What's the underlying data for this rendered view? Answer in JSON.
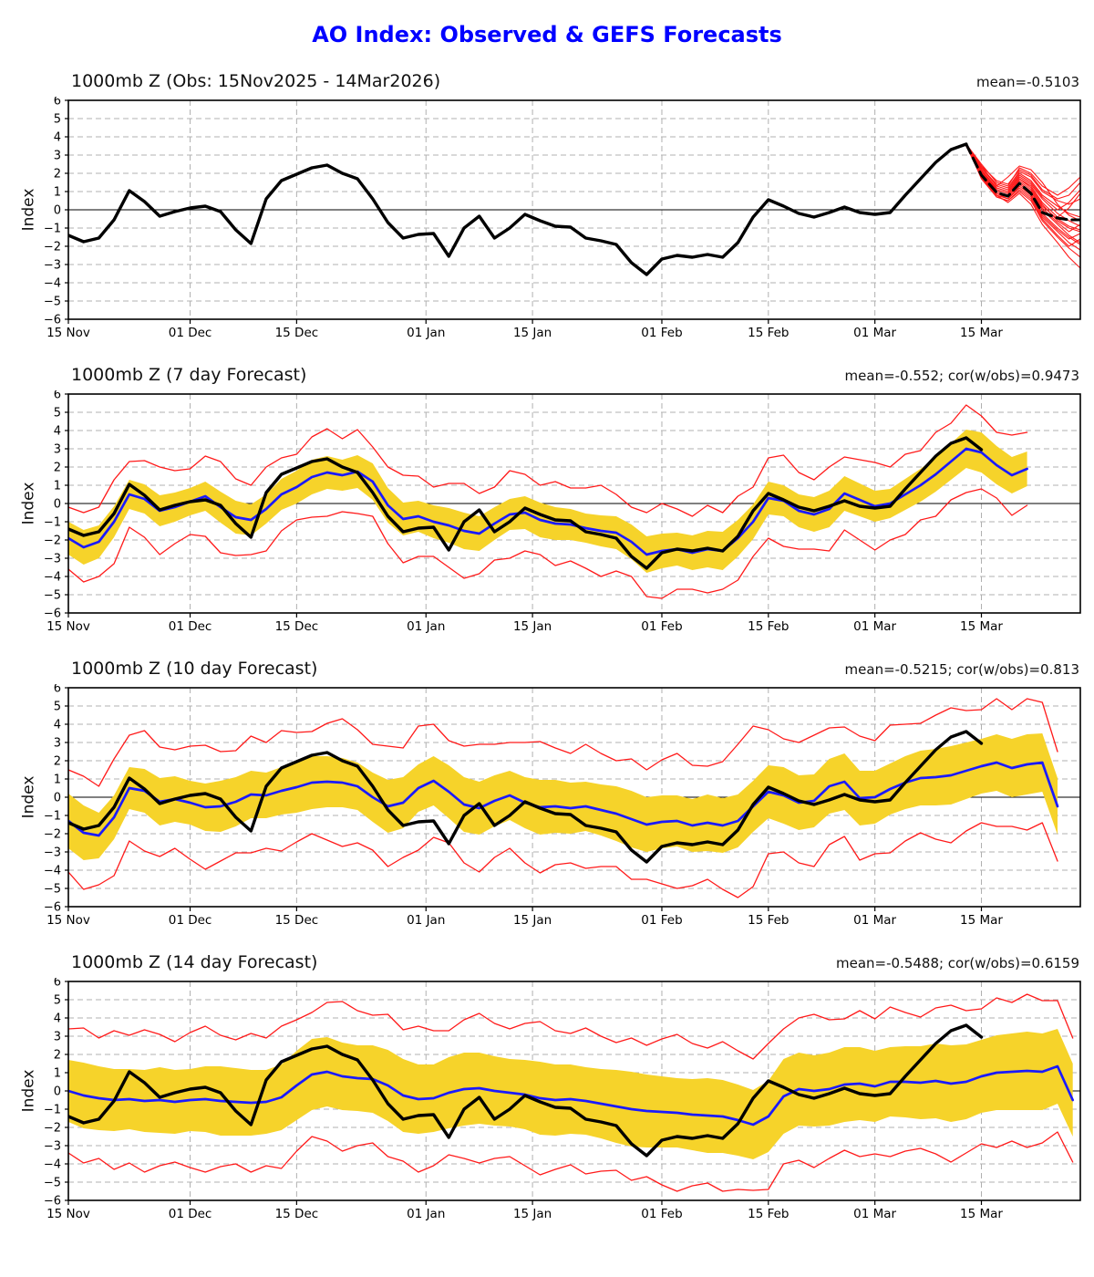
{
  "page_title": "AO Index: Observed & GEFS Forecasts",
  "colors": {
    "title": "#0000ff",
    "observed": "#000000",
    "forecast_mean": "#1a1aff",
    "ensemble_member": "#ff1a1a",
    "envelope": "#ff1a1a",
    "band": "#f6d32a",
    "grid": "#b0b0b0",
    "zero_line": "#000000",
    "frame": "#000000"
  },
  "axes": {
    "ylabel": "Index",
    "ymin": -6,
    "ymax": 6,
    "xmin_day": 0,
    "xmax_day": 133,
    "yticks": [
      {
        "value": 6,
        "label": "6"
      },
      {
        "value": 5,
        "label": "5"
      },
      {
        "value": 4,
        "label": "4"
      },
      {
        "value": 3,
        "label": "3"
      },
      {
        "value": 2,
        "label": "2"
      },
      {
        "value": 1,
        "label": "1"
      },
      {
        "value": 0,
        "label": "0"
      },
      {
        "value": -1,
        "label": "−1"
      },
      {
        "value": -2,
        "label": "−2"
      },
      {
        "value": -3,
        "label": "−3"
      },
      {
        "value": -4,
        "label": "−4"
      },
      {
        "value": -5,
        "label": "−5"
      },
      {
        "value": -6,
        "label": "−6"
      }
    ],
    "xticks": [
      {
        "day": 0,
        "label": "15 Nov"
      },
      {
        "day": 16,
        "label": "01 Dec"
      },
      {
        "day": 30,
        "label": "15 Dec"
      },
      {
        "day": 47,
        "label": "01 Jan"
      },
      {
        "day": 61,
        "label": "15 Jan"
      },
      {
        "day": 78,
        "label": "01 Feb"
      },
      {
        "day": 92,
        "label": "15 Feb"
      },
      {
        "day": 106,
        "label": "01 Mar"
      },
      {
        "day": 120,
        "label": "15 Mar"
      }
    ]
  },
  "chart_data": [
    {
      "type": "line",
      "title": "1000mb Z (Obs: 15Nov2025 - 14Mar2026)",
      "stats": "mean=-0.5103",
      "observed": {
        "x0": 0,
        "dx": 2,
        "values": [
          -1.4,
          -1.75,
          -1.55,
          -0.55,
          1.05,
          0.45,
          -0.35,
          -0.1,
          0.1,
          0.2,
          -0.1,
          -1.1,
          -1.85,
          0.6,
          1.6,
          1.95,
          2.3,
          2.45,
          2.0,
          1.7,
          0.6,
          -0.7,
          -1.55,
          -1.35,
          -1.3,
          -2.55,
          -1.0,
          -0.35,
          -1.55,
          -1.0,
          -0.25,
          -0.6,
          -0.9,
          -0.95,
          -1.55,
          -1.7,
          -1.9,
          -2.9,
          -3.55,
          -2.7,
          -2.5,
          -2.6,
          -2.45,
          -2.6,
          -1.8,
          -0.4,
          0.55,
          0.2,
          -0.2,
          -0.4,
          -0.15,
          0.15,
          -0.15,
          -0.25,
          -0.15,
          0.8,
          1.7,
          2.6,
          3.3,
          3.6
        ]
      },
      "forecast_mean_dashed": {
        "x": [
          118,
          120,
          122,
          123.5,
          125,
          126.5,
          128,
          130,
          131.5,
          133
        ],
        "values": [
          3.6,
          1.9,
          0.95,
          0.75,
          1.45,
          0.9,
          -0.15,
          -0.45,
          -0.55,
          -0.55
        ]
      },
      "ensemble_members": {
        "x": [
          118,
          120,
          122,
          123.5,
          125,
          126.5,
          128,
          130,
          131.5,
          133
        ],
        "members": [
          [
            3.5,
            2.2,
            1.1,
            0.9,
            1.7,
            1.2,
            0.3,
            -0.6,
            -1.0,
            -1.2
          ],
          [
            3.6,
            2.0,
            1.0,
            0.8,
            1.5,
            1.0,
            0.0,
            -0.8,
            -1.4,
            -1.8
          ],
          [
            3.6,
            1.8,
            0.8,
            0.6,
            1.2,
            0.7,
            -0.4,
            -1.2,
            -1.8,
            -2.2
          ],
          [
            3.5,
            2.4,
            1.3,
            1.1,
            2.0,
            1.6,
            0.8,
            0.2,
            -0.2,
            -0.4
          ],
          [
            3.6,
            2.1,
            1.2,
            1.0,
            1.8,
            1.4,
            0.6,
            -0.2,
            -0.6,
            -0.9
          ],
          [
            3.6,
            1.9,
            0.9,
            0.7,
            1.4,
            0.9,
            -0.2,
            -1.0,
            -1.5,
            -1.9
          ],
          [
            3.5,
            2.3,
            1.4,
            1.2,
            2.1,
            1.8,
            1.0,
            0.5,
            0.3,
            0.6
          ],
          [
            3.6,
            2.0,
            1.1,
            0.9,
            1.6,
            1.1,
            0.2,
            -0.5,
            -0.9,
            -1.1
          ],
          [
            3.6,
            1.7,
            0.7,
            0.5,
            1.0,
            0.5,
            -0.6,
            -1.5,
            -2.1,
            -2.6
          ],
          [
            3.5,
            2.2,
            1.2,
            1.0,
            1.9,
            1.5,
            0.7,
            0.0,
            0.4,
            1.1
          ],
          [
            3.6,
            2.5,
            1.5,
            1.3,
            2.3,
            2.0,
            1.3,
            0.8,
            1.2,
            1.8
          ],
          [
            3.6,
            1.9,
            0.8,
            0.4,
            0.9,
            0.3,
            -0.8,
            -1.8,
            -2.6,
            -3.2
          ],
          [
            3.5,
            2.1,
            1.0,
            0.8,
            1.5,
            1.0,
            0.1,
            -0.7,
            -1.2,
            -0.8
          ],
          [
            3.6,
            2.3,
            1.3,
            1.8,
            2.4,
            2.2,
            1.5,
            0.3,
            -0.3,
            -0.6
          ],
          [
            3.6,
            2.0,
            0.9,
            0.6,
            1.3,
            0.8,
            -0.3,
            -1.1,
            -1.6,
            -1.3
          ],
          [
            3.5,
            1.8,
            0.7,
            0.5,
            1.1,
            0.6,
            -0.5,
            -1.4,
            -2.0,
            -1.6
          ],
          [
            3.6,
            2.2,
            1.1,
            0.9,
            1.7,
            1.3,
            0.4,
            -0.4,
            0.1,
            0.9
          ],
          [
            3.6,
            2.4,
            1.6,
            1.4,
            2.2,
            1.9,
            1.1,
            0.6,
            0.8,
            1.5
          ]
        ]
      }
    },
    {
      "type": "line",
      "title": "1000mb Z (7 day Forecast)",
      "stats": "mean=-0.552; cor(w/obs)=0.9473",
      "observed": {
        "x0": 0,
        "dx": 2,
        "values": [
          -1.4,
          -1.75,
          -1.55,
          -0.55,
          1.05,
          0.45,
          -0.35,
          -0.1,
          0.1,
          0.2,
          -0.1,
          -1.1,
          -1.85,
          0.6,
          1.6,
          1.95,
          2.3,
          2.45,
          2.0,
          1.7,
          0.6,
          -0.7,
          -1.55,
          -1.35,
          -1.3,
          -2.55,
          -1.0,
          -0.35,
          -1.55,
          -1.0,
          -0.25,
          -0.6,
          -0.9,
          -0.95,
          -1.55,
          -1.7,
          -1.9,
          -2.9,
          -3.55,
          -2.7,
          -2.5,
          -2.6,
          -2.45,
          -2.6,
          -1.8,
          -0.4,
          0.55,
          0.2,
          -0.2,
          -0.4,
          -0.15,
          0.15,
          -0.15,
          -0.25,
          -0.15,
          0.8,
          1.7,
          2.6,
          3.3,
          3.6,
          2.95
        ]
      },
      "forecast_mean": {
        "x0": 0,
        "dx": 2,
        "values": [
          -1.9,
          -2.4,
          -2.1,
          -1.0,
          0.5,
          0.25,
          -0.4,
          -0.2,
          0.1,
          0.4,
          -0.2,
          -0.75,
          -0.9,
          -0.3,
          0.5,
          0.9,
          1.45,
          1.7,
          1.55,
          1.75,
          1.2,
          -0.1,
          -0.85,
          -0.7,
          -1.0,
          -1.2,
          -1.5,
          -1.65,
          -1.1,
          -0.6,
          -0.5,
          -0.9,
          -1.1,
          -1.15,
          -1.35,
          -1.5,
          -1.6,
          -2.1,
          -2.8,
          -2.6,
          -2.5,
          -2.7,
          -2.5,
          -2.6,
          -1.9,
          -1.0,
          0.3,
          0.15,
          -0.4,
          -0.6,
          -0.3,
          0.55,
          0.2,
          -0.15,
          0.0,
          0.5,
          1.0,
          1.6,
          2.3,
          3.0,
          2.8,
          2.1,
          1.55,
          1.9
        ]
      },
      "band_halfwidth": [
        0.9,
        0.95,
        0.9,
        0.85,
        0.8,
        0.8,
        0.85,
        0.8,
        0.75,
        0.8,
        0.85,
        0.9,
        0.85,
        0.8,
        0.85,
        0.9,
        0.95,
        0.9,
        0.85,
        0.9,
        1.0,
        0.95,
        0.9,
        0.85,
        0.9,
        0.95,
        1.0,
        0.95,
        0.9,
        0.85,
        0.9,
        0.95,
        0.9,
        0.85,
        0.8,
        0.85,
        0.9,
        0.95,
        1.0,
        0.95,
        0.9,
        0.95,
        1.0,
        1.05,
        1.0,
        0.95,
        0.9,
        0.85,
        0.9,
        0.95,
        1.0,
        0.95,
        0.9,
        0.85,
        0.8,
        0.85,
        0.9,
        0.95,
        1.0,
        1.05,
        1.1,
        1.05,
        1.0,
        0.95
      ],
      "envelope_halfwidth": [
        1.7,
        1.9,
        1.9,
        2.3,
        1.8,
        2.1,
        2.4,
        2.0,
        1.8,
        2.2,
        2.5,
        2.1,
        1.9,
        2.3,
        2.0,
        1.8,
        2.2,
        2.4,
        2.0,
        2.3,
        1.9,
        2.1,
        2.4,
        2.2,
        1.9,
        2.3,
        2.6,
        2.2,
        2.0,
        2.4,
        2.1,
        1.9,
        2.3,
        2.0,
        2.2,
        2.5,
        2.1,
        1.9,
        2.3,
        2.6,
        2.2,
        2.0,
        2.4,
        2.1,
        2.3,
        1.9,
        2.2,
        2.5,
        2.1,
        1.9,
        2.3,
        2.0,
        2.2,
        2.4,
        2.0,
        2.2,
        1.9,
        2.3,
        2.1,
        2.4,
        2.0,
        1.8,
        2.2,
        2.0
      ]
    },
    {
      "type": "line",
      "title": "1000mb Z (10 day Forecast)",
      "stats": "mean=-0.5215; cor(w/obs)=0.813",
      "observed": {
        "x0": 0,
        "dx": 2,
        "values": [
          -1.4,
          -1.75,
          -1.55,
          -0.55,
          1.05,
          0.45,
          -0.35,
          -0.1,
          0.1,
          0.2,
          -0.1,
          -1.1,
          -1.85,
          0.6,
          1.6,
          1.95,
          2.3,
          2.45,
          2.0,
          1.7,
          0.6,
          -0.7,
          -1.55,
          -1.35,
          -1.3,
          -2.55,
          -1.0,
          -0.35,
          -1.55,
          -1.0,
          -0.25,
          -0.6,
          -0.9,
          -0.95,
          -1.55,
          -1.7,
          -1.9,
          -2.9,
          -3.55,
          -2.7,
          -2.5,
          -2.6,
          -2.45,
          -2.6,
          -1.8,
          -0.4,
          0.55,
          0.2,
          -0.2,
          -0.4,
          -0.15,
          0.15,
          -0.15,
          -0.25,
          -0.15,
          0.8,
          1.7,
          2.6,
          3.3,
          3.6,
          2.95
        ]
      },
      "forecast_mean": {
        "x0": 0,
        "dx": 2,
        "values": [
          -1.3,
          -1.95,
          -2.1,
          -1.1,
          0.5,
          0.35,
          -0.25,
          -0.1,
          -0.3,
          -0.55,
          -0.5,
          -0.25,
          0.15,
          0.1,
          0.35,
          0.55,
          0.8,
          0.85,
          0.8,
          0.6,
          0.0,
          -0.5,
          -0.3,
          0.5,
          0.9,
          0.3,
          -0.4,
          -0.6,
          -0.2,
          0.1,
          -0.3,
          -0.55,
          -0.5,
          -0.6,
          -0.5,
          -0.7,
          -0.9,
          -1.2,
          -1.5,
          -1.35,
          -1.3,
          -1.55,
          -1.4,
          -1.55,
          -1.3,
          -0.5,
          0.3,
          0.1,
          -0.3,
          -0.2,
          0.6,
          0.85,
          -0.05,
          0.0,
          0.45,
          0.8,
          1.05,
          1.1,
          1.2,
          1.45,
          1.7,
          1.9,
          1.6,
          1.8,
          1.9,
          -0.5
        ]
      },
      "band_halfwidth": [
        1.5,
        1.5,
        1.25,
        1.2,
        1.15,
        1.2,
        1.3,
        1.25,
        1.2,
        1.3,
        1.4,
        1.35,
        1.3,
        1.25,
        1.3,
        1.4,
        1.45,
        1.4,
        1.35,
        1.3,
        1.35,
        1.45,
        1.4,
        1.3,
        1.35,
        1.45,
        1.5,
        1.45,
        1.4,
        1.35,
        1.4,
        1.5,
        1.45,
        1.4,
        1.35,
        1.4,
        1.5,
        1.55,
        1.5,
        1.45,
        1.4,
        1.45,
        1.55,
        1.5,
        1.45,
        1.4,
        1.45,
        1.55,
        1.5,
        1.45,
        1.5,
        1.55,
        1.5,
        1.45,
        1.4,
        1.45,
        1.5,
        1.55,
        1.6,
        1.55,
        1.5,
        1.55,
        1.6,
        1.65,
        1.6,
        1.55
      ],
      "envelope_halfwidth": [
        2.8,
        3.1,
        2.7,
        3.2,
        2.9,
        3.3,
        3.0,
        2.7,
        3.1,
        3.4,
        3.0,
        2.8,
        3.2,
        2.9,
        3.3,
        3.0,
        2.8,
        3.2,
        3.5,
        3.1,
        2.9,
        3.3,
        3.0,
        3.4,
        3.1,
        2.8,
        3.2,
        3.5,
        3.1,
        2.9,
        3.3,
        3.6,
        3.2,
        3.0,
        3.4,
        3.1,
        2.9,
        3.3,
        3.0,
        3.4,
        3.7,
        3.3,
        3.1,
        3.5,
        4.2,
        4.4,
        3.4,
        3.1,
        3.3,
        3.6,
        3.2,
        3.0,
        3.4,
        3.1,
        3.5,
        3.2,
        3.0,
        3.4,
        3.7,
        3.3,
        3.1,
        3.5,
        3.2,
        3.6,
        3.3,
        3.0
      ]
    },
    {
      "type": "line",
      "title": "1000mb Z (14 day Forecast)",
      "stats": "mean=-0.5488; cor(w/obs)=0.6159",
      "observed": {
        "x0": 0,
        "dx": 2,
        "values": [
          -1.4,
          -1.75,
          -1.55,
          -0.55,
          1.05,
          0.45,
          -0.35,
          -0.1,
          0.1,
          0.2,
          -0.1,
          -1.1,
          -1.85,
          0.6,
          1.6,
          1.95,
          2.3,
          2.45,
          2.0,
          1.7,
          0.6,
          -0.7,
          -1.55,
          -1.35,
          -1.3,
          -2.55,
          -1.0,
          -0.35,
          -1.55,
          -1.0,
          -0.25,
          -0.6,
          -0.9,
          -0.95,
          -1.55,
          -1.7,
          -1.9,
          -2.9,
          -3.55,
          -2.7,
          -2.5,
          -2.6,
          -2.45,
          -2.6,
          -1.8,
          -0.4,
          0.55,
          0.2,
          -0.2,
          -0.4,
          -0.15,
          0.15,
          -0.15,
          -0.25,
          -0.15,
          0.8,
          1.7,
          2.6,
          3.3,
          3.6,
          2.95
        ]
      },
      "forecast_mean": {
        "x0": 0,
        "dx": 2,
        "values": [
          0.0,
          -0.25,
          -0.4,
          -0.5,
          -0.45,
          -0.55,
          -0.5,
          -0.6,
          -0.5,
          -0.45,
          -0.55,
          -0.6,
          -0.65,
          -0.6,
          -0.35,
          0.3,
          0.9,
          1.05,
          0.8,
          0.7,
          0.65,
          0.3,
          -0.25,
          -0.45,
          -0.4,
          -0.1,
          0.1,
          0.15,
          0.0,
          -0.1,
          -0.2,
          -0.4,
          -0.5,
          -0.45,
          -0.55,
          -0.7,
          -0.85,
          -1.0,
          -1.1,
          -1.15,
          -1.2,
          -1.3,
          -1.35,
          -1.4,
          -1.6,
          -1.85,
          -1.4,
          -0.3,
          0.1,
          0.0,
          0.1,
          0.35,
          0.4,
          0.25,
          0.5,
          0.5,
          0.45,
          0.55,
          0.4,
          0.5,
          0.8,
          1.0,
          1.05,
          1.1,
          1.05,
          1.35,
          -0.5
        ]
      },
      "band_halfwidth": [
        1.7,
        1.8,
        1.75,
        1.7,
        1.65,
        1.7,
        1.8,
        1.75,
        1.7,
        1.8,
        1.9,
        1.85,
        1.8,
        1.75,
        1.8,
        1.9,
        1.95,
        1.9,
        1.85,
        1.8,
        1.85,
        1.95,
        2.0,
        1.9,
        1.85,
        1.95,
        2.0,
        1.95,
        1.9,
        1.85,
        1.9,
        2.0,
        1.95,
        1.9,
        1.85,
        1.9,
        2.0,
        2.05,
        2.0,
        1.95,
        1.9,
        1.95,
        2.05,
        2.0,
        1.95,
        1.9,
        1.95,
        2.05,
        2.0,
        1.95,
        2.0,
        2.05,
        2.0,
        1.95,
        1.9,
        1.95,
        2.0,
        2.05,
        2.1,
        2.05,
        2.0,
        2.05,
        2.1,
        2.15,
        2.1,
        2.05,
        2.0
      ],
      "envelope_halfwidth": [
        3.4,
        3.7,
        3.3,
        3.8,
        3.5,
        3.9,
        3.6,
        3.3,
        3.7,
        4.0,
        3.6,
        3.4,
        3.8,
        3.5,
        3.9,
        3.6,
        3.4,
        3.8,
        4.1,
        3.7,
        3.5,
        3.9,
        3.6,
        4.0,
        3.7,
        3.4,
        3.8,
        4.1,
        3.7,
        3.5,
        3.9,
        4.2,
        3.8,
        3.6,
        4.0,
        3.7,
        3.5,
        3.9,
        3.6,
        4.0,
        4.3,
        3.9,
        3.7,
        4.1,
        3.8,
        3.6,
        4.0,
        3.7,
        3.9,
        4.2,
        3.8,
        3.6,
        4.0,
        3.7,
        4.1,
        3.8,
        3.6,
        4.0,
        4.3,
        3.9,
        3.7,
        4.1,
        3.8,
        4.2,
        3.9,
        3.6,
        3.4
      ]
    }
  ]
}
